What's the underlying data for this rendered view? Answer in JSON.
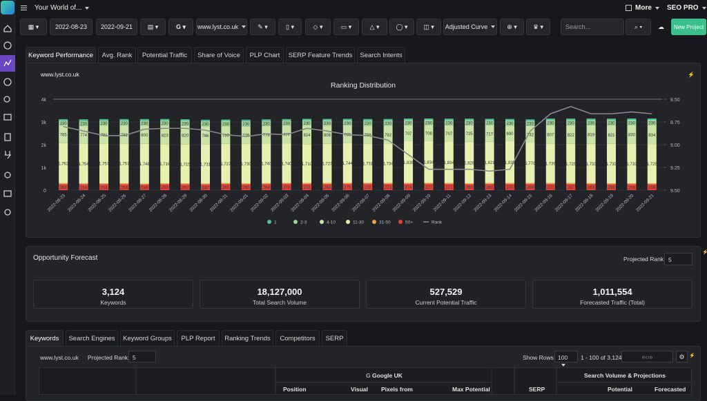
{
  "header": {
    "workspace": "Your World of...",
    "more": "More",
    "plan": "SEO PRO"
  },
  "toolbar": {
    "start_date": "2022-08-23",
    "end_date": "2022-09-21",
    "domain": "www.lyst.co.uk",
    "curve": "Adjusted Curve",
    "search_placeholder": "Search...",
    "new_project": "New Project"
  },
  "tabs": [
    "Keyword Performance",
    "Avg. Rank",
    "Potential Traffic",
    "Share of Voice",
    "PLP Chart",
    "SERP Feature Trends",
    "Search Intents"
  ],
  "chart_panel": {
    "domain": "www.lyst.co.uk"
  },
  "chart_data": {
    "type": "bar",
    "stacked": true,
    "title": "Ranking Distribution",
    "categories": [
      "2022-08-23",
      "2022-08-24",
      "2022-08-25",
      "2022-08-26",
      "2022-08-27",
      "2022-08-28",
      "2022-08-29",
      "2022-08-30",
      "2022-08-31",
      "2022-09-01",
      "2022-09-02",
      "2022-09-03",
      "2022-09-04",
      "2022-09-05",
      "2022-09-06",
      "2022-09-07",
      "2022-09-08",
      "2022-09-09",
      "2022-09-10",
      "2022-09-11",
      "2022-09-12",
      "2022-09-13",
      "2022-09-14",
      "2022-09-15",
      "2022-09-16",
      "2022-09-17",
      "2022-09-18",
      "2022-09-19",
      "2022-09-20",
      "2022-09-21"
    ],
    "series": [
      {
        "name": "1",
        "color": "#4fc3a1",
        "values": [
          60,
          60,
          60,
          60,
          60,
          60,
          60,
          60,
          60,
          60,
          60,
          60,
          60,
          60,
          60,
          60,
          60,
          60,
          60,
          60,
          60,
          60,
          60,
          60,
          60,
          60,
          60,
          60,
          60,
          60
        ]
      },
      {
        "name": "2-3",
        "color": "#9fd49a",
        "values": [
          230,
          230,
          230,
          230,
          230,
          230,
          230,
          230,
          230,
          230,
          230,
          230,
          230,
          230,
          230,
          230,
          230,
          230,
          230,
          230,
          230,
          230,
          230,
          230,
          230,
          230,
          230,
          230,
          230,
          230
        ]
      },
      {
        "name": "4-10",
        "color": "#c9e4a6",
        "values": [
          765,
          774,
          781,
          781,
          800,
          823,
          820,
          786,
          780,
          776,
          776,
          777,
          824,
          806,
          785,
          788,
          792,
          707,
          708,
          707,
          725,
          717,
          690,
          732,
          807,
          822,
          819,
          821,
          830,
          834
        ]
      },
      {
        "name": "11-30",
        "color": "#e8efb0",
        "values": [
          1763,
          1754,
          1757,
          1757,
          1748,
          1716,
          1715,
          1731,
          1727,
          1730,
          1740,
          1740,
          1710,
          1727,
          1744,
          1731,
          1734,
          1835,
          1834,
          1834,
          1828,
          1821,
          1839,
          1778,
          1739,
          1725,
          1733,
          1733,
          1733,
          1725
        ],
        "value_labels": [
          "1,763",
          "1,754",
          "1,757",
          "1,757",
          "1,748",
          "1,716",
          "1,715",
          "1,731",
          "1,727",
          "1,730",
          "1,740",
          "1,740",
          "1,710",
          "1,727",
          "1,744",
          "1,731",
          "1,734",
          "1,835",
          "1,834",
          "1,834",
          "1,828",
          "1,821",
          "1,839",
          "1,778",
          "1,739",
          "1,725",
          "1,733",
          "1,733",
          "1,733",
          "1,725"
        ]
      },
      {
        "name": "31-50",
        "color": "#f0a04b",
        "values": [
          43,
          43,
          43,
          43,
          43,
          43,
          43,
          43,
          43,
          43,
          43,
          43,
          43,
          43,
          43,
          43,
          43,
          43,
          43,
          43,
          43,
          43,
          43,
          43,
          43,
          43,
          43,
          43,
          43,
          43
        ]
      },
      {
        "name": "50+",
        "color": "#e0443c",
        "values": [
          263,
          254,
          254,
          254,
          246,
          259,
          252,
          247,
          265,
          260,
          264,
          276,
          270,
          269,
          275,
          278,
          273,
          274,
          277,
          271,
          260,
          268,
          270,
          269,
          270,
          267,
          263,
          259,
          256,
          259
        ]
      },
      {
        "name": "Rank",
        "color": "#8a8a8a",
        "type": "line",
        "axis": "y2",
        "values": [
          8.8,
          8.85,
          8.9,
          8.9,
          8.83,
          8.82,
          8.82,
          8.84,
          8.89,
          8.91,
          8.88,
          8.89,
          8.82,
          8.85,
          8.89,
          8.9,
          8.95,
          9.11,
          9.27,
          9.27,
          9.27,
          9.29,
          9.27,
          8.85,
          8.66,
          8.58,
          8.66,
          8.66,
          8.64,
          8.66
        ]
      }
    ],
    "ylim": [
      0,
      4000
    ],
    "yticks": [
      0,
      {
        "value": 1000,
        "label": "1k"
      },
      {
        "value": 2000,
        "label": "2k"
      },
      {
        "value": 3000,
        "label": "3k"
      },
      {
        "value": 4000,
        "label": "4k"
      }
    ],
    "y2lim": [
      9.5,
      8.5
    ],
    "y2ticks": [
      {
        "value": 8.5,
        "label": "8.50"
      },
      {
        "value": 8.75,
        "label": "8.75"
      },
      {
        "value": 9,
        "label": "9.00"
      },
      {
        "value": 9.25,
        "label": "9.25"
      },
      {
        "value": 9.5,
        "label": "9.50"
      }
    ],
    "grid": true,
    "legend": "bottom"
  },
  "forecast": {
    "title": "Opportunity Forecast",
    "projected_rank_label": "Projected Rank",
    "projected_rank": "5",
    "stats": [
      {
        "value": "3,124",
        "label": "Keywords"
      },
      {
        "value": "18,127,000",
        "label": "Total Search Volume"
      },
      {
        "value": "527,529",
        "label": "Current Potential Traffic"
      },
      {
        "value": "1,011,554",
        "label": "Forecasted Traffic (Total)"
      }
    ]
  },
  "bottom_tabs": [
    "Keywords",
    "Search Engines",
    "Keyword Groups",
    "PLP Report",
    "Ranking Trends",
    "Competitors",
    "SERP"
  ],
  "table": {
    "domain": "www.lyst.co.uk",
    "projected_rank_label": "Projected Rank",
    "projected_rank": "5",
    "show_rows_label": "Show Rows",
    "rows": "100",
    "range": "1 - 100 of 3,124",
    "headers": {
      "engine": "Google UK",
      "group": "Search Volume & Projections",
      "columns": [
        "Position",
        "Visual",
        "Pixels from",
        "Max Potential",
        "SERP",
        "Potential",
        "Forecasted"
      ]
    }
  }
}
